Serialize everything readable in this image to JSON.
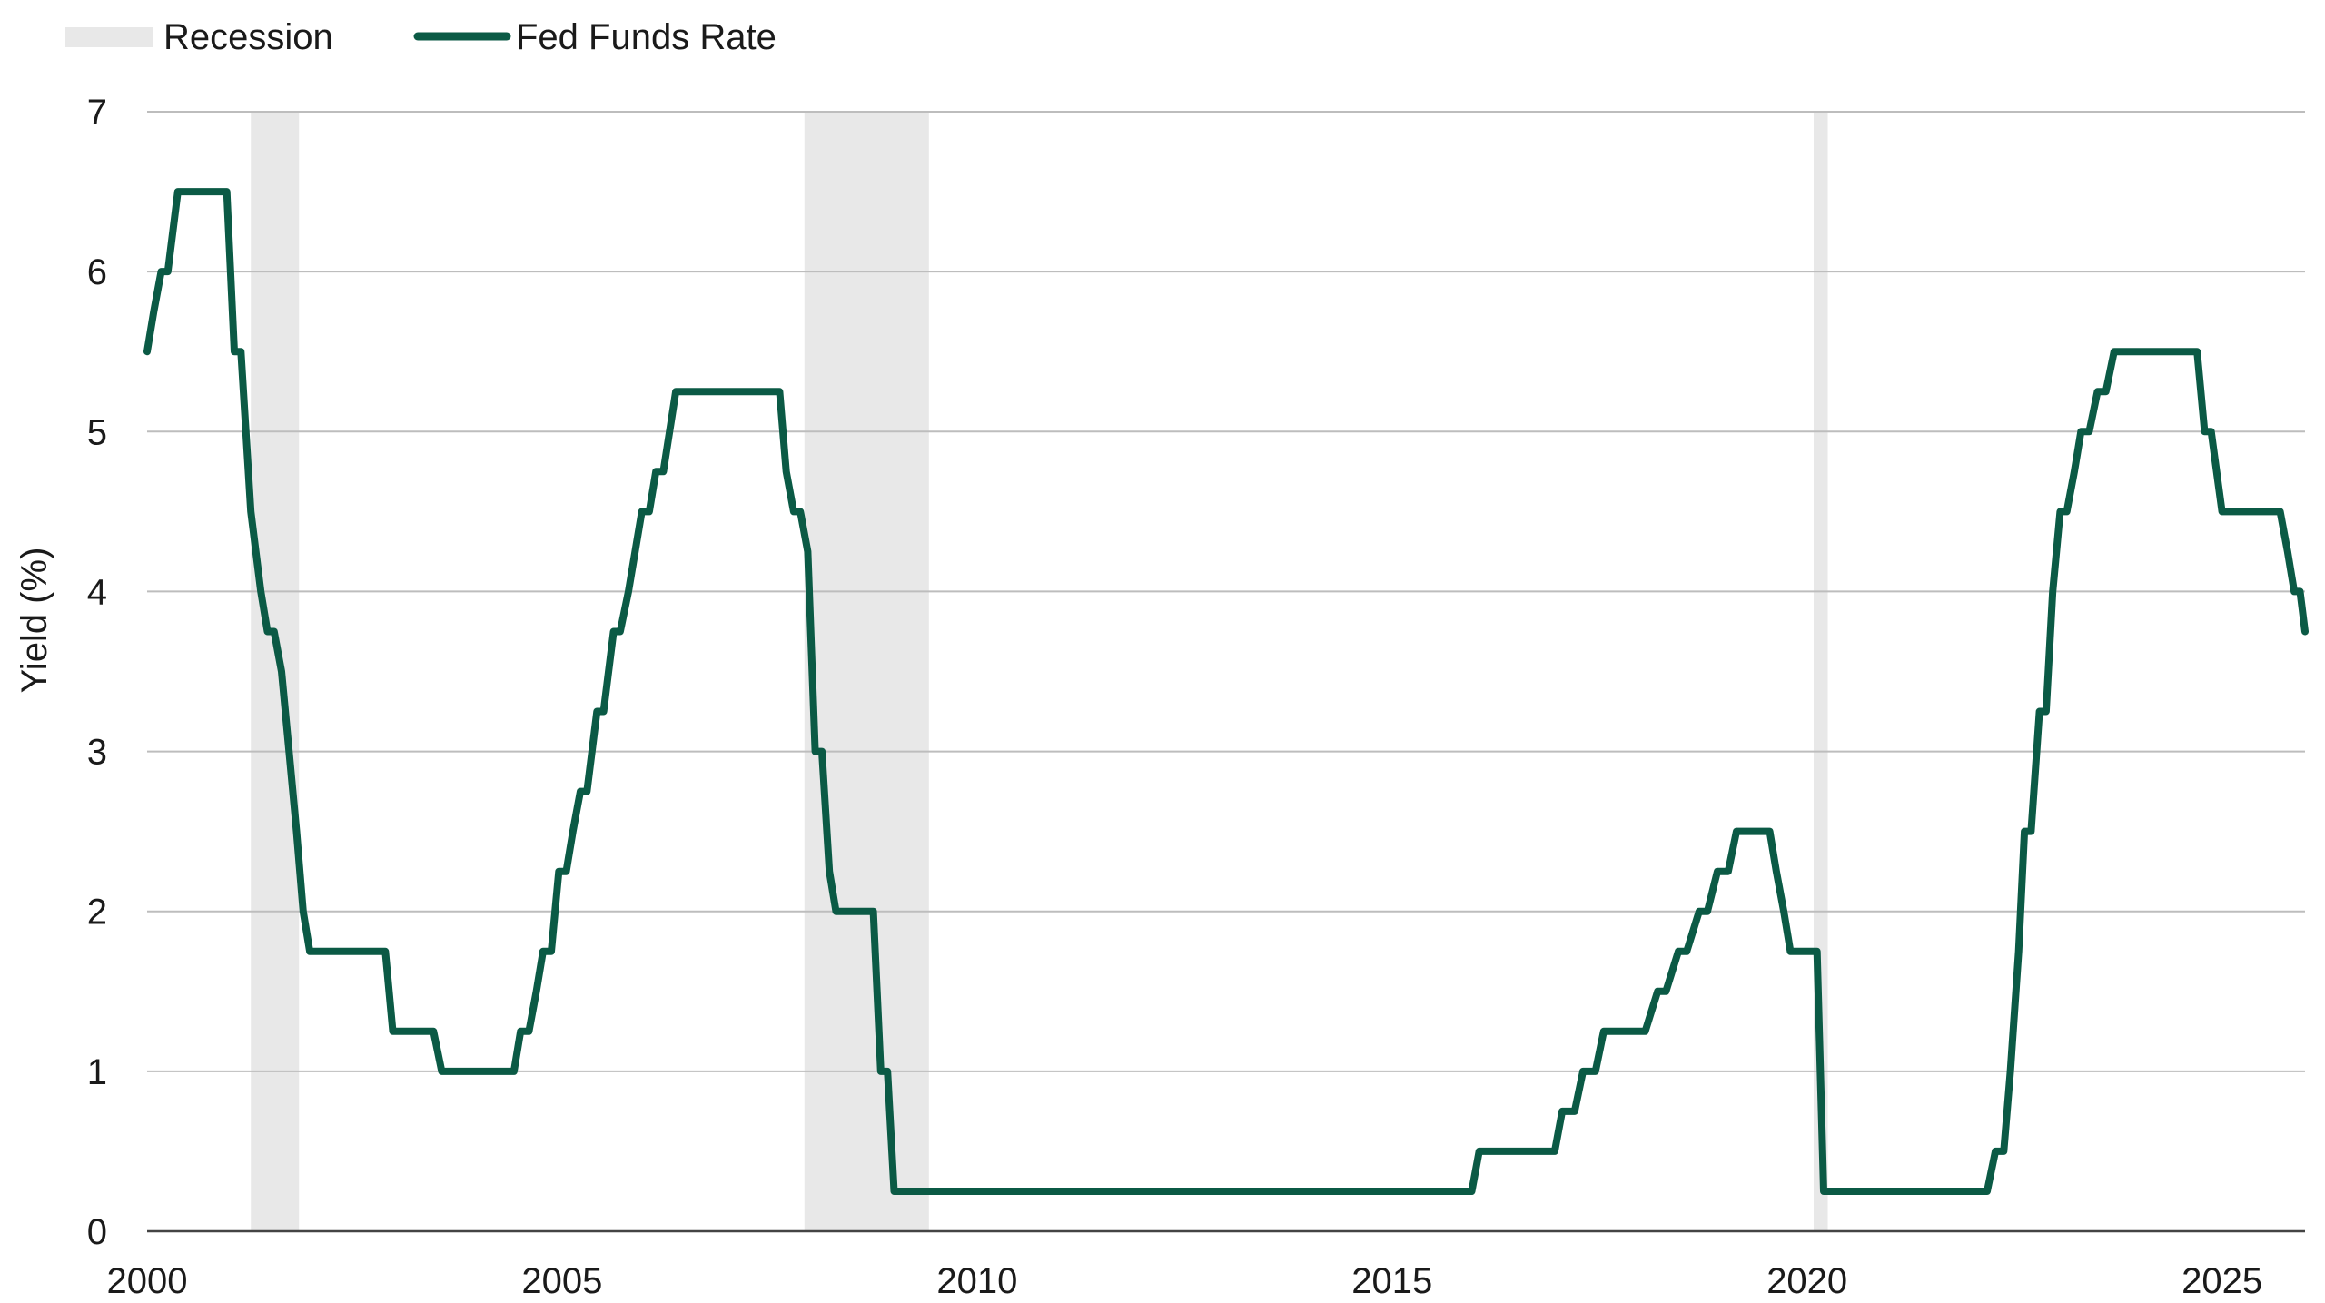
{
  "chart_data": {
    "type": "line",
    "ylabel": "Yield (%)",
    "xlabel": "",
    "xlim": [
      2000,
      2026
    ],
    "ylim": [
      0,
      7
    ],
    "x_ticks": [
      2000,
      2005,
      2010,
      2015,
      2020,
      2025
    ],
    "x_tick_labels": [
      "2000",
      "2005",
      "2010",
      "2015",
      "2020",
      "2025"
    ],
    "y_ticks": [
      0,
      1,
      2,
      3,
      4,
      5,
      6,
      7
    ],
    "y_tick_labels": [
      "0",
      "1",
      "2",
      "3",
      "4",
      "5",
      "6",
      "7"
    ],
    "grid": "horizontal",
    "legend": {
      "position": "top-left",
      "entries": [
        {
          "label": "Recession",
          "kind": "band",
          "color": "#e8e8e8"
        },
        {
          "label": "Fed Funds Rate",
          "kind": "line",
          "color": "#0b5a45"
        }
      ]
    },
    "recessions": [
      {
        "start": 2001.25,
        "end": 2001.83
      },
      {
        "start": 2007.92,
        "end": 2009.42
      },
      {
        "start": 2020.08,
        "end": 2020.25
      }
    ],
    "series": [
      {
        "name": "Fed Funds Rate",
        "color": "#0b5a45",
        "points": [
          [
            2000.0,
            5.5
          ],
          [
            2000.08,
            5.75
          ],
          [
            2000.17,
            6.0
          ],
          [
            2000.25,
            6.0
          ],
          [
            2000.37,
            6.5
          ],
          [
            2000.5,
            6.5
          ],
          [
            2000.75,
            6.5
          ],
          [
            2000.96,
            6.5
          ],
          [
            2001.05,
            5.5
          ],
          [
            2001.13,
            5.5
          ],
          [
            2001.25,
            4.5
          ],
          [
            2001.37,
            4.0
          ],
          [
            2001.45,
            3.75
          ],
          [
            2001.53,
            3.75
          ],
          [
            2001.62,
            3.5
          ],
          [
            2001.71,
            3.0
          ],
          [
            2001.8,
            2.5
          ],
          [
            2001.88,
            2.0
          ],
          [
            2001.96,
            1.75
          ],
          [
            2002.5,
            1.75
          ],
          [
            2002.87,
            1.75
          ],
          [
            2002.96,
            1.25
          ],
          [
            2003.45,
            1.25
          ],
          [
            2003.55,
            1.0
          ],
          [
            2004.0,
            1.0
          ],
          [
            2004.42,
            1.0
          ],
          [
            2004.5,
            1.25
          ],
          [
            2004.6,
            1.25
          ],
          [
            2004.69,
            1.5
          ],
          [
            2004.77,
            1.75
          ],
          [
            2004.87,
            1.75
          ],
          [
            2004.96,
            2.25
          ],
          [
            2005.05,
            2.25
          ],
          [
            2005.13,
            2.5
          ],
          [
            2005.22,
            2.75
          ],
          [
            2005.3,
            2.75
          ],
          [
            2005.42,
            3.25
          ],
          [
            2005.5,
            3.25
          ],
          [
            2005.62,
            3.75
          ],
          [
            2005.7,
            3.75
          ],
          [
            2005.8,
            4.0
          ],
          [
            2005.96,
            4.5
          ],
          [
            2006.05,
            4.5
          ],
          [
            2006.13,
            4.75
          ],
          [
            2006.22,
            4.75
          ],
          [
            2006.37,
            5.25
          ],
          [
            2007.0,
            5.25
          ],
          [
            2007.62,
            5.25
          ],
          [
            2007.7,
            4.75
          ],
          [
            2007.79,
            4.5
          ],
          [
            2007.87,
            4.5
          ],
          [
            2007.96,
            4.25
          ],
          [
            2008.05,
            3.0
          ],
          [
            2008.13,
            3.0
          ],
          [
            2008.22,
            2.25
          ],
          [
            2008.3,
            2.0
          ],
          [
            2008.5,
            2.0
          ],
          [
            2008.75,
            2.0
          ],
          [
            2008.84,
            1.0
          ],
          [
            2008.92,
            1.0
          ],
          [
            2009.0,
            0.25
          ],
          [
            2012.0,
            0.25
          ],
          [
            2015.0,
            0.25
          ],
          [
            2015.96,
            0.25
          ],
          [
            2016.05,
            0.5
          ],
          [
            2016.5,
            0.5
          ],
          [
            2016.96,
            0.5
          ],
          [
            2017.05,
            0.75
          ],
          [
            2017.2,
            0.75
          ],
          [
            2017.3,
            1.0
          ],
          [
            2017.45,
            1.0
          ],
          [
            2017.55,
            1.25
          ],
          [
            2018.0,
            1.25
          ],
          [
            2018.05,
            1.25
          ],
          [
            2018.2,
            1.5
          ],
          [
            2018.3,
            1.5
          ],
          [
            2018.45,
            1.75
          ],
          [
            2018.55,
            1.75
          ],
          [
            2018.7,
            2.0
          ],
          [
            2018.8,
            2.0
          ],
          [
            2018.92,
            2.25
          ],
          [
            2019.05,
            2.25
          ],
          [
            2019.15,
            2.5
          ],
          [
            2019.4,
            2.5
          ],
          [
            2019.55,
            2.5
          ],
          [
            2019.63,
            2.25
          ],
          [
            2019.72,
            2.0
          ],
          [
            2019.8,
            1.75
          ],
          [
            2020.0,
            1.75
          ],
          [
            2020.12,
            1.75
          ],
          [
            2020.2,
            0.25
          ],
          [
            2021.0,
            0.25
          ],
          [
            2022.0,
            0.25
          ],
          [
            2022.17,
            0.25
          ],
          [
            2022.27,
            0.5
          ],
          [
            2022.37,
            0.5
          ],
          [
            2022.45,
            1.0
          ],
          [
            2022.55,
            1.75
          ],
          [
            2022.62,
            2.5
          ],
          [
            2022.7,
            2.5
          ],
          [
            2022.8,
            3.25
          ],
          [
            2022.88,
            3.25
          ],
          [
            2022.96,
            4.0
          ],
          [
            2023.05,
            4.5
          ],
          [
            2023.13,
            4.5
          ],
          [
            2023.22,
            4.75
          ],
          [
            2023.3,
            5.0
          ],
          [
            2023.4,
            5.0
          ],
          [
            2023.5,
            5.25
          ],
          [
            2023.6,
            5.25
          ],
          [
            2023.7,
            5.5
          ],
          [
            2024.0,
            5.5
          ],
          [
            2024.5,
            5.5
          ],
          [
            2024.7,
            5.5
          ],
          [
            2024.79,
            5.0
          ],
          [
            2024.87,
            5.0
          ],
          [
            2025.0,
            4.5
          ],
          [
            2025.5,
            4.5
          ],
          [
            2025.7,
            4.5
          ],
          [
            2025.79,
            4.25
          ],
          [
            2025.87,
            4.0
          ],
          [
            2025.94,
            4.0
          ],
          [
            2026.0,
            3.75
          ]
        ]
      }
    ]
  }
}
